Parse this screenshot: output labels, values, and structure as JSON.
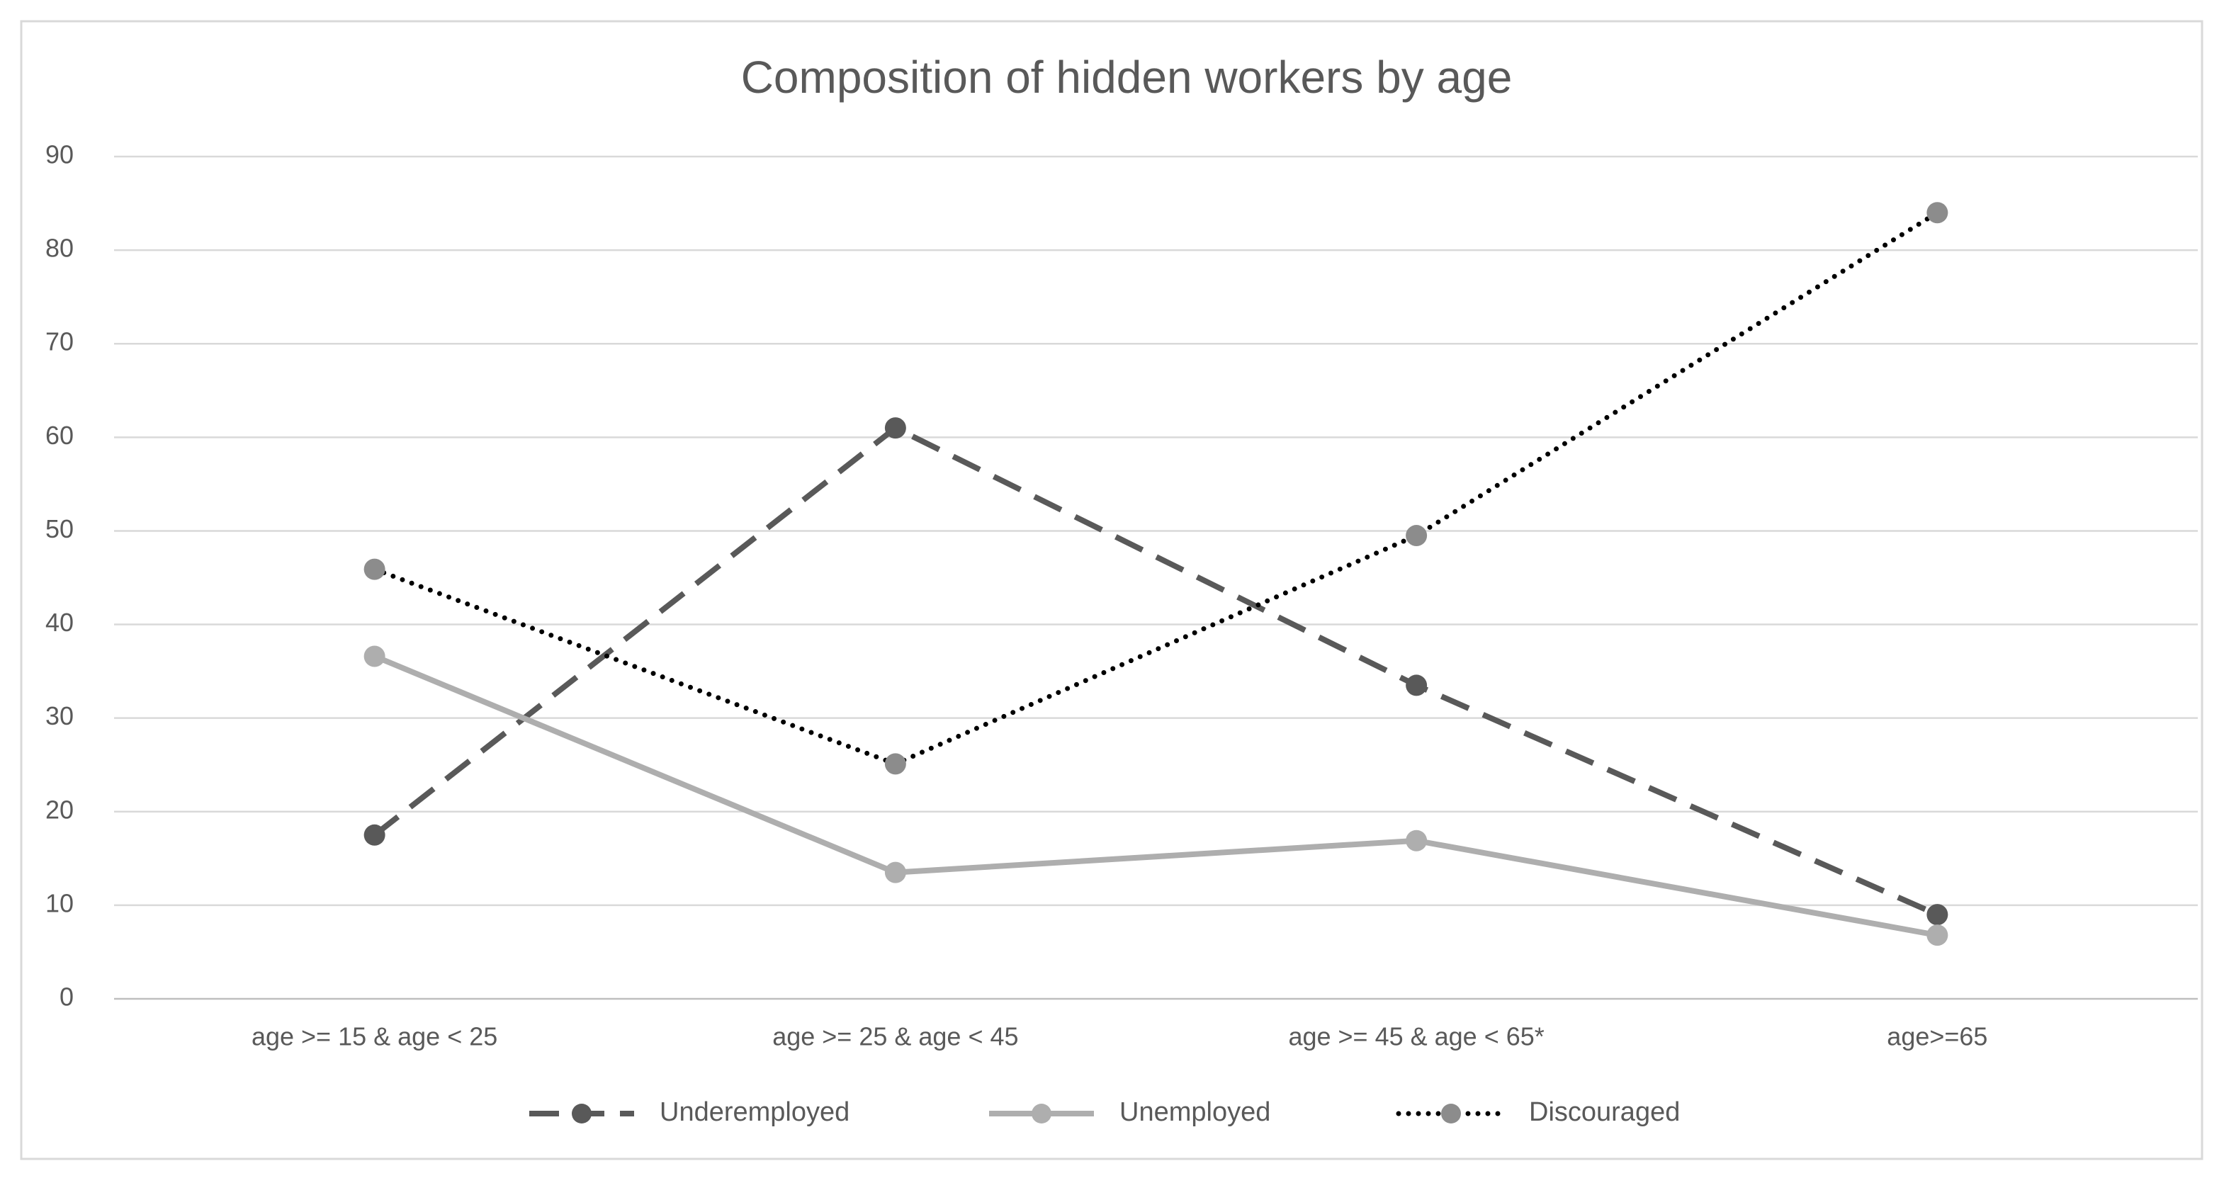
{
  "chart_data": {
    "type": "line",
    "title": "Composition of hidden workers by age",
    "categories": [
      "age >= 15 & age < 25",
      "age >= 25 & age < 45",
      "age >= 45 & age < 65*",
      "age>=65"
    ],
    "series": [
      {
        "name": "Underemployed",
        "color": "#595959",
        "marker_color": "#595959",
        "dash": "dashed",
        "values": [
          17.5,
          61,
          33.5,
          9
        ]
      },
      {
        "name": "Unemployed",
        "color": "#aeaeae",
        "marker_color": "#aeaeae",
        "dash": "solid",
        "values": [
          36.6,
          13.5,
          16.9,
          6.8
        ]
      },
      {
        "name": "Discouraged",
        "color": "#000000",
        "marker_color": "#8c8c8c",
        "dash": "dotted",
        "values": [
          45.9,
          25.1,
          49.5,
          84
        ]
      }
    ],
    "ylim": [
      0,
      90
    ],
    "yticks": [
      0,
      10,
      20,
      30,
      40,
      50,
      60,
      70,
      80,
      90
    ],
    "grid": true,
    "legend": "bottom"
  }
}
